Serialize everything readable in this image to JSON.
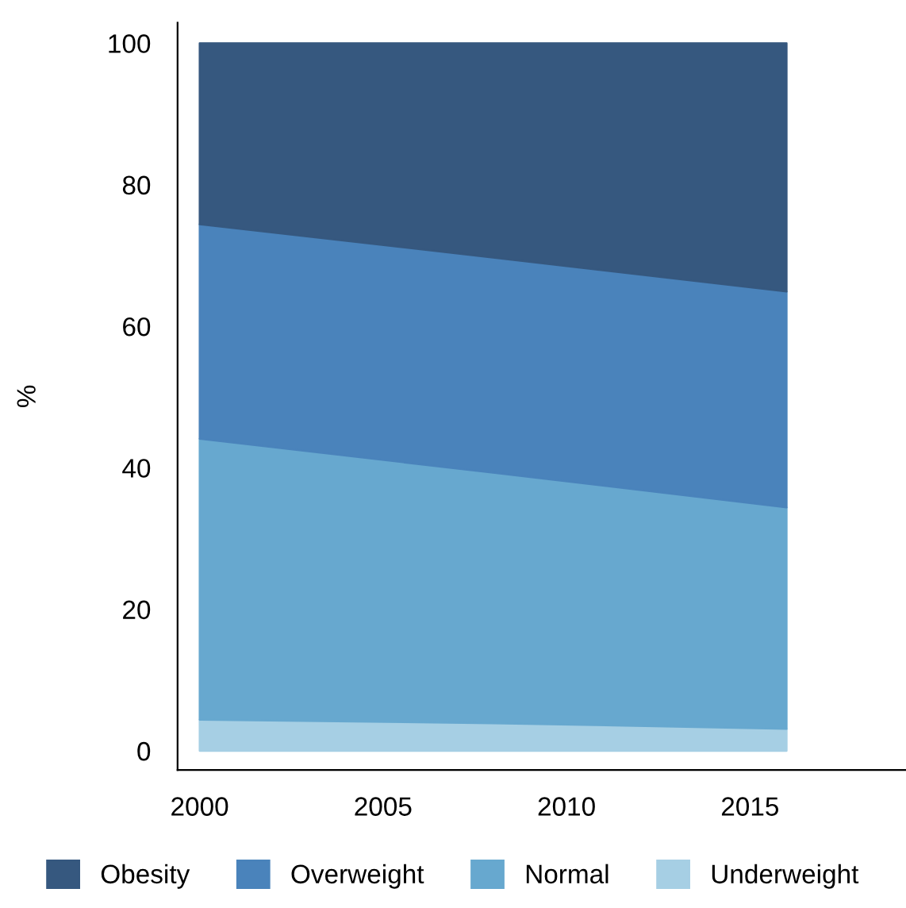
{
  "chart_data": {
    "type": "area",
    "stacked": true,
    "ylabel": "%",
    "x": [
      2000,
      2008,
      2016
    ],
    "series": [
      {
        "name": "Underweight",
        "color": "#a6cfe4",
        "values": [
          4.4,
          3.9,
          3.1
        ]
      },
      {
        "name": "Normal",
        "color": "#67a8cf",
        "values": [
          39.7,
          35.4,
          31.3
        ]
      },
      {
        "name": "Overweight",
        "color": "#4a83bb",
        "values": [
          30.3,
          30.4,
          30.5
        ]
      },
      {
        "name": "Obesity",
        "color": "#36587f",
        "values": [
          25.6,
          30.3,
          35.1
        ]
      }
    ],
    "xlim": [
      1999.4,
      2019.4
    ],
    "xticks": [
      2000,
      2005,
      2010,
      2015
    ],
    "ylim": [
      -2.7,
      102.9
    ],
    "yticks": [
      0,
      20,
      40,
      60,
      80,
      100
    ],
    "grid": false,
    "legend": "bottom"
  }
}
